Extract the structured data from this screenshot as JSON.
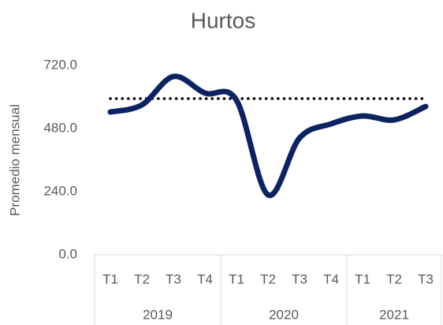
{
  "chart_data": {
    "type": "line",
    "title": "Hurtos",
    "y_label": "Promedio mensual",
    "groups": [
      {
        "name": "2019",
        "categories": [
          "T1",
          "T2",
          "T3",
          "T4"
        ]
      },
      {
        "name": "2020",
        "categories": [
          "T1",
          "T2",
          "T3",
          "T4"
        ]
      },
      {
        "name": "2021",
        "categories": [
          "T1",
          "T2",
          "T3"
        ]
      }
    ],
    "series": [
      {
        "color": "#0b2461",
        "smooth": true,
        "style": "solid",
        "values": [
          543,
          570,
          678,
          615,
          588,
          228,
          444,
          498,
          528,
          513,
          564
        ]
      },
      {
        "color": "#000000",
        "smooth": false,
        "style": "dotted",
        "values": [
          594,
          594,
          594,
          594,
          594,
          594,
          594,
          594,
          594,
          594,
          594
        ]
      }
    ],
    "ylim": [
      0,
      720
    ],
    "yticks": [
      {
        "value": 0,
        "label": "0.0"
      },
      {
        "value": 240,
        "label": "240.0"
      },
      {
        "value": 480,
        "label": "480.0"
      },
      {
        "value": 720,
        "label": "720.0"
      }
    ],
    "grid": false
  }
}
